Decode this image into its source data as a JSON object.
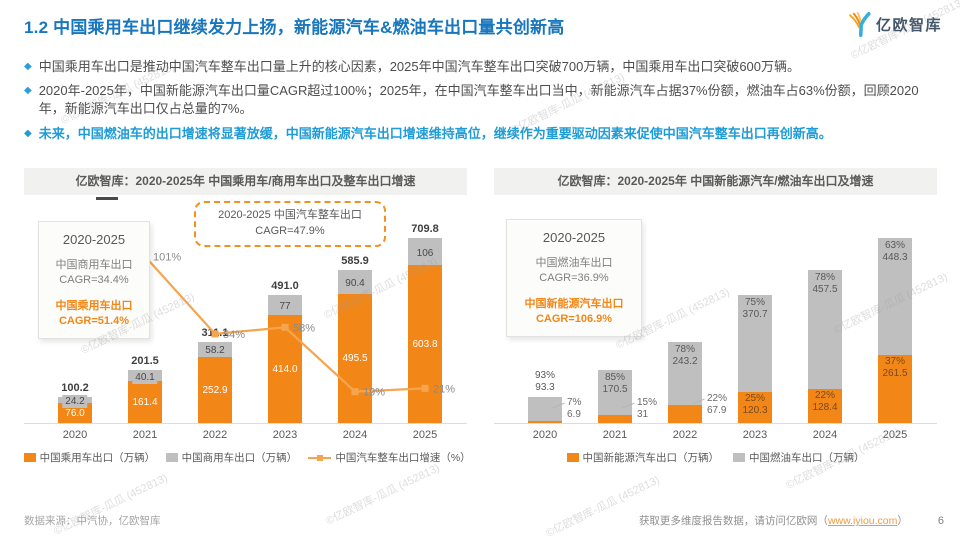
{
  "header": {
    "title": "1.2 中国乘用车出口继续发力上扬，新能源汽车&燃油车出口量共创新高",
    "logo_text": "亿欧智库"
  },
  "bullets": [
    {
      "text": "中国乘用车出口是推动中国汽车整车出口量上升的核心因素，2025年中国汽车整车出口突破700万辆，中国乘用车出口突破600万辆。",
      "emphasis": false
    },
    {
      "text": "2020年-2025年，中国新能源汽车出口量CAGR超过100%；2025年，在中国汽车整车出口当中，新能源汽车占据37%份额，燃油车占63%份额，回顾2020年，新能源汽车出口仅占总量的7%。",
      "emphasis": false
    },
    {
      "text": "未来，中国燃油车的出口增速将显著放缓，中国新能源汽车出口增速维持高位，继续作为重要驱动因素来促使中国汽车整车出口再创新高。",
      "emphasis": true
    }
  ],
  "footer": {
    "source": "数据来源：中汽协，亿欧智库",
    "more_prefix": "获取更多维度报告数据，请访问亿欧网（",
    "link": "www.iyiou.com",
    "more_suffix": "）",
    "page_number": "6"
  },
  "watermark": "©亿欧智库-瓜瓜 (452813)",
  "colors": {
    "orange": "#F28718",
    "gray_bar": "#BFBFBF",
    "line_orange": "#F6A44F",
    "title_blue": "#1776BD",
    "bullet_blue": "#2B9FD6",
    "emphasis_blue": "#1F9CD7"
  },
  "chart_data": [
    {
      "type": "bar",
      "title": "亿欧智库：2020-2025年 中国乘用车/商用车出口及整车出口增速",
      "categories": [
        "2020",
        "2021",
        "2022",
        "2023",
        "2024",
        "2025"
      ],
      "unit": "万辆",
      "ylim": [
        0,
        720
      ],
      "series": [
        {
          "name": "中国乘用车出口（万辆）",
          "color": "orange",
          "values": [
            76.0,
            161.4,
            252.9,
            414.0,
            495.5,
            603.8
          ],
          "labels": [
            "76.0",
            "161.4",
            "252.9",
            "414.0",
            "495.5",
            "603.8"
          ]
        },
        {
          "name": "中国商用车出口（万辆）",
          "color": "gray",
          "values": [
            24.2,
            40.1,
            58.2,
            77,
            90.4,
            106
          ],
          "labels": [
            "24.2",
            "40.1",
            "58.2",
            "77",
            "90.4",
            "106"
          ]
        }
      ],
      "totals": [
        100.2,
        201.5,
        311.1,
        491.0,
        585.9,
        709.8
      ],
      "total_labels": [
        "100.2",
        "201.5",
        "311.1",
        "491.0",
        "585.9",
        "709.8"
      ],
      "line_series": {
        "name": "中国汽车整车出口增速（%）",
        "values": [
          null,
          101,
          54,
          58,
          19,
          21
        ],
        "labels": [
          "",
          "101%",
          "54%",
          "58%",
          "19%",
          "21%"
        ]
      },
      "info_card": {
        "period": "2020-2025",
        "entries": [
          {
            "label": "中国商用车出口",
            "value": "CAGR=34.4%",
            "color": "gray"
          },
          {
            "label": "中国乘用车出口",
            "value": "CAGR=51.4%",
            "color": "orange"
          }
        ]
      },
      "annotation": {
        "line1": "2020-2025 中国汽车整车出口",
        "line2": "CAGR=47.9%"
      }
    },
    {
      "type": "bar",
      "title": "亿欧智库：2020-2025年 中国新能源汽车/燃油车出口及增速",
      "categories": [
        "2020",
        "2021",
        "2022",
        "2023",
        "2024",
        "2025"
      ],
      "unit": "万辆",
      "ylim": [
        0,
        720
      ],
      "series": [
        {
          "name": "中国新能源汽车出口（万辆）",
          "color": "orange",
          "values": [
            6.9,
            31,
            67.9,
            120.3,
            128.4,
            261.5
          ],
          "labels": [
            "6.9",
            "31",
            "67.9",
            "120.3",
            "128.4",
            "261.5"
          ],
          "pct": [
            "7%",
            "15%",
            "22%",
            "25%",
            "22%",
            "37%"
          ],
          "callout": [
            true,
            true,
            true,
            false,
            false,
            false
          ]
        },
        {
          "name": "中国燃油车出口（万辆）",
          "color": "gray",
          "values": [
            93.3,
            170.5,
            243.2,
            370.7,
            457.5,
            448.3
          ],
          "labels": [
            "93.3",
            "170.5",
            "243.2",
            "370.7",
            "457.5",
            "448.3"
          ],
          "pct": [
            "93%",
            "85%",
            "78%",
            "75%",
            "78%",
            "63%"
          ],
          "above": [
            true,
            false,
            false,
            false,
            false,
            false
          ]
        }
      ],
      "info_card": {
        "period": "2020-2025",
        "entries": [
          {
            "label": "中国燃油车出口",
            "value": "CAGR=36.9%",
            "color": "gray"
          },
          {
            "label": "中国新能源汽车出口",
            "value": "CAGR=106.9%",
            "color": "orange"
          }
        ]
      }
    }
  ]
}
